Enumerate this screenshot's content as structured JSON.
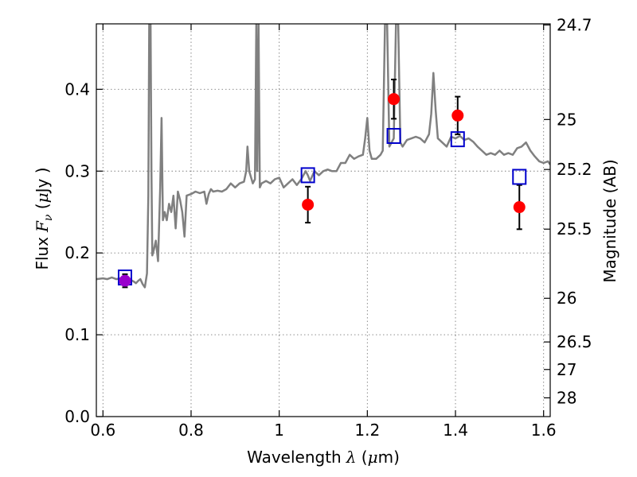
{
  "chart_data": {
    "type": "line",
    "title": "",
    "xlabel": {
      "prefix": "Wavelength",
      "symbol": "λ",
      "unit_open": " (",
      "unit_symbol": "μ",
      "unit_rest": "m)"
    },
    "ylabel": {
      "prefix": "Flux",
      "symbol": "F",
      "subscript": "ν",
      "unit_open": " (",
      "unit_symbol": "μ",
      "unit_rest": "Jy )"
    },
    "y2label": "Magnitude (AB)",
    "xlim": [
      0.585,
      1.615
    ],
    "ylim": [
      0.0,
      0.48
    ],
    "grid": true,
    "x_ticks": [
      {
        "value": 0.6,
        "label": "0.6"
      },
      {
        "value": 0.8,
        "label": "0.8"
      },
      {
        "value": 1.0,
        "label": "1"
      },
      {
        "value": 1.2,
        "label": "1.2"
      },
      {
        "value": 1.4,
        "label": "1.4"
      },
      {
        "value": 1.6,
        "label": "1.6"
      }
    ],
    "y_ticks": [
      {
        "value": 0.0,
        "label": "0.0"
      },
      {
        "value": 0.1,
        "label": "0.1"
      },
      {
        "value": 0.2,
        "label": "0.2"
      },
      {
        "value": 0.3,
        "label": "0.3"
      },
      {
        "value": 0.4,
        "label": "0.4"
      }
    ],
    "y2_ticks": [
      {
        "mag": 24.7,
        "label": "24.7"
      },
      {
        "mag": 25.0,
        "label": "25"
      },
      {
        "mag": 25.2,
        "label": "25.2"
      },
      {
        "mag": 25.5,
        "label": "25.5"
      },
      {
        "mag": 26.0,
        "label": "26"
      },
      {
        "mag": 26.5,
        "label": "26.5"
      },
      {
        "mag": 27.0,
        "label": "27"
      },
      {
        "mag": 28.0,
        "label": "28"
      }
    ],
    "colors": {
      "spectrum": "#808080",
      "observed": "#ff0000",
      "model": "#0000cc",
      "errorbar": "#000000",
      "overlap_marker": "#9900cc"
    },
    "series": [
      {
        "kind": "spectrum",
        "x": [
          0.585,
          0.6,
          0.61,
          0.62,
          0.63,
          0.64,
          0.65,
          0.66,
          0.67,
          0.675,
          0.68,
          0.685,
          0.69,
          0.695,
          0.7,
          0.703,
          0.705,
          0.708,
          0.71,
          0.712,
          0.716,
          0.72,
          0.725,
          0.73,
          0.733,
          0.736,
          0.74,
          0.745,
          0.75,
          0.755,
          0.76,
          0.765,
          0.77,
          0.775,
          0.78,
          0.785,
          0.79,
          0.8,
          0.81,
          0.82,
          0.83,
          0.835,
          0.84,
          0.845,
          0.85,
          0.86,
          0.87,
          0.88,
          0.89,
          0.9,
          0.91,
          0.92,
          0.925,
          0.928,
          0.932,
          0.94,
          0.945,
          0.948,
          0.95,
          0.953,
          0.956,
          0.96,
          0.97,
          0.98,
          0.99,
          1.0,
          1.01,
          1.02,
          1.03,
          1.04,
          1.05,
          1.06,
          1.065,
          1.07,
          1.08,
          1.09,
          1.1,
          1.11,
          1.12,
          1.13,
          1.14,
          1.15,
          1.16,
          1.17,
          1.18,
          1.19,
          1.195,
          1.2,
          1.205,
          1.21,
          1.22,
          1.23,
          1.235,
          1.24,
          1.245,
          1.25,
          1.26,
          1.265,
          1.27,
          1.275,
          1.28,
          1.29,
          1.3,
          1.31,
          1.32,
          1.33,
          1.34,
          1.345,
          1.35,
          1.355,
          1.36,
          1.37,
          1.38,
          1.39,
          1.4,
          1.41,
          1.42,
          1.43,
          1.44,
          1.45,
          1.46,
          1.47,
          1.48,
          1.49,
          1.5,
          1.51,
          1.52,
          1.53,
          1.54,
          1.55,
          1.56,
          1.57,
          1.58,
          1.59,
          1.6,
          1.61,
          1.615
        ],
        "y": [
          0.168,
          0.169,
          0.168,
          0.17,
          0.168,
          0.169,
          0.166,
          0.168,
          0.165,
          0.163,
          0.166,
          0.168,
          0.162,
          0.158,
          0.175,
          0.27,
          0.48,
          0.48,
          0.3,
          0.197,
          0.205,
          0.215,
          0.19,
          0.28,
          0.365,
          0.24,
          0.25,
          0.24,
          0.26,
          0.25,
          0.27,
          0.23,
          0.275,
          0.265,
          0.25,
          0.22,
          0.27,
          0.272,
          0.275,
          0.273,
          0.275,
          0.26,
          0.272,
          0.278,
          0.275,
          0.276,
          0.275,
          0.278,
          0.285,
          0.28,
          0.285,
          0.287,
          0.3,
          0.33,
          0.3,
          0.285,
          0.29,
          0.48,
          0.3,
          0.48,
          0.28,
          0.285,
          0.288,
          0.285,
          0.29,
          0.292,
          0.28,
          0.285,
          0.29,
          0.283,
          0.29,
          0.3,
          0.295,
          0.288,
          0.3,
          0.295,
          0.3,
          0.302,
          0.3,
          0.3,
          0.31,
          0.31,
          0.32,
          0.315,
          0.318,
          0.32,
          0.34,
          0.365,
          0.325,
          0.315,
          0.315,
          0.32,
          0.325,
          0.48,
          0.48,
          0.33,
          0.34,
          0.48,
          0.48,
          0.335,
          0.33,
          0.338,
          0.34,
          0.342,
          0.34,
          0.335,
          0.345,
          0.37,
          0.42,
          0.375,
          0.34,
          0.335,
          0.33,
          0.342,
          0.34,
          0.343,
          0.338,
          0.34,
          0.336,
          0.33,
          0.325,
          0.32,
          0.322,
          0.32,
          0.325,
          0.32,
          0.322,
          0.32,
          0.328,
          0.33,
          0.335,
          0.325,
          0.318,
          0.312,
          0.31,
          0.312,
          0.308
        ]
      },
      {
        "kind": "observed",
        "name": "",
        "x": [
          0.65,
          1.065,
          1.26,
          1.405,
          1.545
        ],
        "y": [
          0.166,
          0.259,
          0.388,
          0.368,
          0.256
        ],
        "yerr": [
          0.008,
          0.022,
          0.024,
          0.023,
          0.027
        ]
      },
      {
        "kind": "model",
        "name": "",
        "x": [
          0.65,
          1.065,
          1.26,
          1.405,
          1.545
        ],
        "y": [
          0.17,
          0.295,
          0.343,
          0.339,
          0.293
        ]
      }
    ]
  }
}
